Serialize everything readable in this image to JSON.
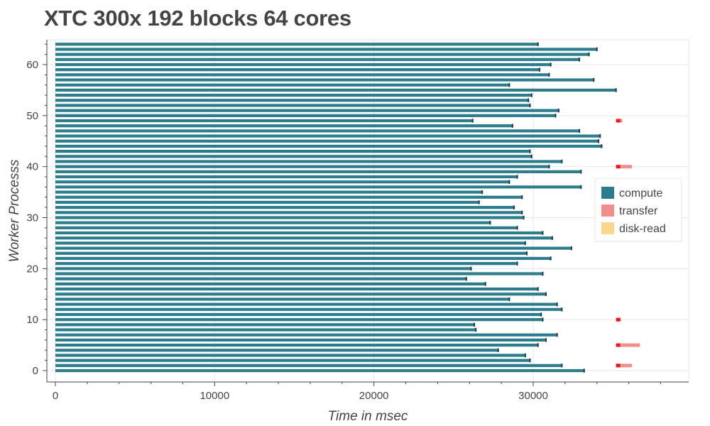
{
  "chart_data": {
    "type": "bar",
    "orientation": "horizontal-gantt",
    "title": "XTC 300x 192 blocks 64 cores",
    "xlabel": "Time in msec",
    "ylabel": "Worker Processs",
    "xlim": [
      -400,
      40000
    ],
    "ylim": [
      -1,
      65.5
    ],
    "xticks": [
      0,
      10000,
      20000,
      30000
    ],
    "xtick_labels": [
      "0",
      "10000",
      "20000",
      "30000"
    ],
    "yticks": [
      0,
      10,
      20,
      30,
      40,
      50,
      60
    ],
    "ytick_labels": [
      "0",
      "10",
      "20",
      "30",
      "40",
      "50",
      "60"
    ],
    "grid": true,
    "legend_position": "right",
    "legend": [
      {
        "name": "compute",
        "color": "#2c7c8c"
      },
      {
        "name": "transfer",
        "color": "#f28e8e"
      },
      {
        "name": "disk-read",
        "color": "#f9d88d"
      }
    ],
    "compute_color": "#2c7c8c",
    "transfer_color": "#f28e8e",
    "transfer_hot_color": "#e81b1b",
    "compute_end_ms": [
      33200,
      31800,
      29800,
      29500,
      27800,
      30300,
      30800,
      31500,
      26400,
      26300,
      30600,
      30500,
      31800,
      31500,
      28500,
      30800,
      30300,
      27000,
      25800,
      30600,
      26100,
      29000,
      31100,
      29600,
      32400,
      29500,
      31200,
      30600,
      29000,
      27300,
      29400,
      29300,
      28800,
      26600,
      29300,
      26800,
      33000,
      28500,
      29000,
      33000,
      31000,
      31800,
      29900,
      29800,
      34300,
      34100,
      34200,
      32900,
      28700,
      26200,
      31400,
      31600,
      29800,
      29700,
      29900,
      35200,
      28500,
      33800,
      31000,
      30400,
      31100,
      32900,
      33500,
      34000,
      30300
    ],
    "transfer_blocks": [
      {
        "worker": 1,
        "start_ms": 35200,
        "end_ms": 36200
      },
      {
        "worker": 5,
        "start_ms": 35200,
        "end_ms": 36700
      },
      {
        "worker": 10,
        "start_ms": 35200,
        "end_ms": 35500
      },
      {
        "worker": 40,
        "start_ms": 35200,
        "end_ms": 36200
      },
      {
        "worker": 49,
        "start_ms": 35200,
        "end_ms": 35600
      }
    ]
  }
}
